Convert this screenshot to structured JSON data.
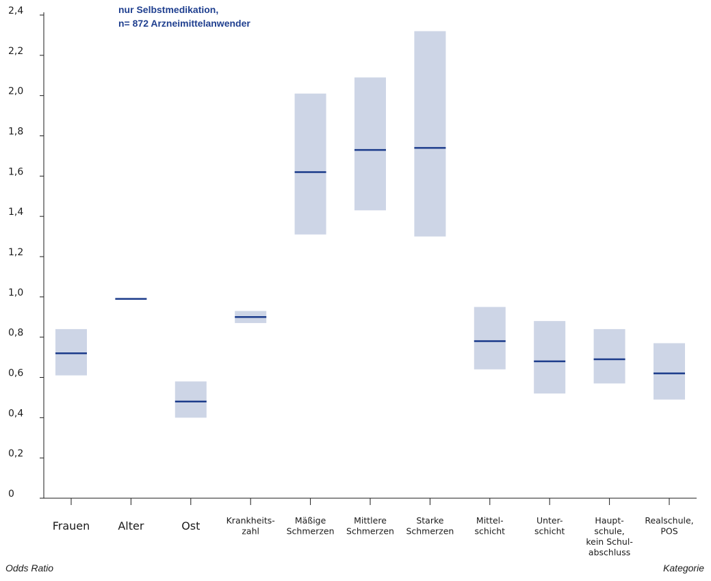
{
  "chart_data": {
    "type": "range-bar",
    "title_lines": [
      "nur Selbstmedikation,",
      "n= 872 Arzneimittelanwender"
    ],
    "ylabel": "Odds Ratio",
    "xlabel": "Kategorie",
    "ylim": [
      0,
      2.4
    ],
    "yticks": [
      {
        "v": 0,
        "label": "0"
      },
      {
        "v": 0.2,
        "label": "0,2"
      },
      {
        "v": 0.4,
        "label": "0,4"
      },
      {
        "v": 0.6,
        "label": "0,6"
      },
      {
        "v": 0.8,
        "label": "0,8"
      },
      {
        "v": 1.0,
        "label": "1,0"
      },
      {
        "v": 1.2,
        "label": "1,2"
      },
      {
        "v": 1.4,
        "label": "1,4"
      },
      {
        "v": 1.6,
        "label": "1,6"
      },
      {
        "v": 1.8,
        "label": "1,8"
      },
      {
        "v": 2.0,
        "label": "2,0"
      },
      {
        "v": 2.2,
        "label": "2,2"
      },
      {
        "v": 2.4,
        "label": "2,4"
      }
    ],
    "categories": [
      {
        "label": [
          "Frauen"
        ],
        "large": true,
        "or": 0.72,
        "low": 0.61,
        "high": 0.84
      },
      {
        "label": [
          "Alter"
        ],
        "large": true,
        "or": 0.99,
        "low": 0.99,
        "high": 0.99
      },
      {
        "label": [
          "Ost"
        ],
        "large": true,
        "or": 0.48,
        "low": 0.4,
        "high": 0.58
      },
      {
        "label": [
          "Krankheits-",
          "zahl"
        ],
        "large": false,
        "or": 0.9,
        "low": 0.87,
        "high": 0.93
      },
      {
        "label": [
          "Mäßige",
          "Schmerzen"
        ],
        "large": false,
        "or": 1.62,
        "low": 1.31,
        "high": 2.01
      },
      {
        "label": [
          "Mittlere",
          "Schmerzen"
        ],
        "large": false,
        "or": 1.73,
        "low": 1.43,
        "high": 2.09
      },
      {
        "label": [
          "Starke",
          "Schmerzen"
        ],
        "large": false,
        "or": 1.74,
        "low": 1.3,
        "high": 2.32
      },
      {
        "label": [
          "Mittel-",
          "schicht"
        ],
        "large": false,
        "or": 0.78,
        "low": 0.64,
        "high": 0.95
      },
      {
        "label": [
          "Unter-",
          "schicht"
        ],
        "large": false,
        "or": 0.68,
        "low": 0.52,
        "high": 0.88
      },
      {
        "label": [
          "Haupt-",
          "schule,",
          "kein Schul-",
          "abschluss"
        ],
        "large": false,
        "or": 0.69,
        "low": 0.57,
        "high": 0.84
      },
      {
        "label": [
          "Realschule,",
          "POS"
        ],
        "large": false,
        "or": 0.62,
        "low": 0.49,
        "high": 0.77
      }
    ],
    "colors": {
      "range": "#cdd5e6",
      "marker": "#1a3a8a",
      "axis": "#1a1a1a",
      "title": "#1f3f8f"
    }
  }
}
